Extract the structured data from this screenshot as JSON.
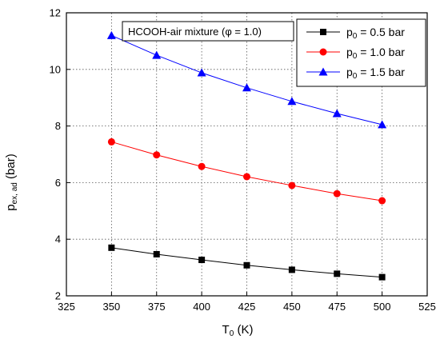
{
  "chart_data": {
    "type": "line",
    "xlabel": {
      "main": "T",
      "sub": "0",
      "unit": " (K)"
    },
    "ylabel": {
      "main": "p",
      "sub": "ex, ad",
      "unit": " (bar)"
    },
    "xlim": [
      325,
      525
    ],
    "ylim": [
      2,
      12
    ],
    "x_ticks": [
      325,
      350,
      375,
      400,
      425,
      450,
      475,
      500,
      525
    ],
    "y_ticks": [
      2,
      4,
      6,
      8,
      10,
      12
    ],
    "grid": true,
    "grid_style": "dotted",
    "legend_position": "top-right",
    "annotation": "HCOOH-air mixture (φ = 1.0)",
    "x": [
      350,
      375,
      400,
      425,
      450,
      475,
      500
    ],
    "series": [
      {
        "legend_main": "p",
        "legend_sub": "0",
        "legend_rest": " = 0.5 bar",
        "color": "#000000",
        "marker": "square",
        "values": [
          3.7,
          3.47,
          3.27,
          3.08,
          2.92,
          2.78,
          2.66
        ]
      },
      {
        "legend_main": "p",
        "legend_sub": "0",
        "legend_rest": " = 1.0 bar",
        "color": "#ff0000",
        "marker": "circle",
        "values": [
          7.44,
          6.98,
          6.57,
          6.21,
          5.9,
          5.61,
          5.36
        ]
      },
      {
        "legend_main": "p",
        "legend_sub": "0",
        "legend_rest": " = 1.5 bar",
        "color": "#0000ff",
        "marker": "triangle",
        "values": [
          11.2,
          10.5,
          9.88,
          9.35,
          8.87,
          8.44,
          8.05
        ]
      }
    ]
  }
}
